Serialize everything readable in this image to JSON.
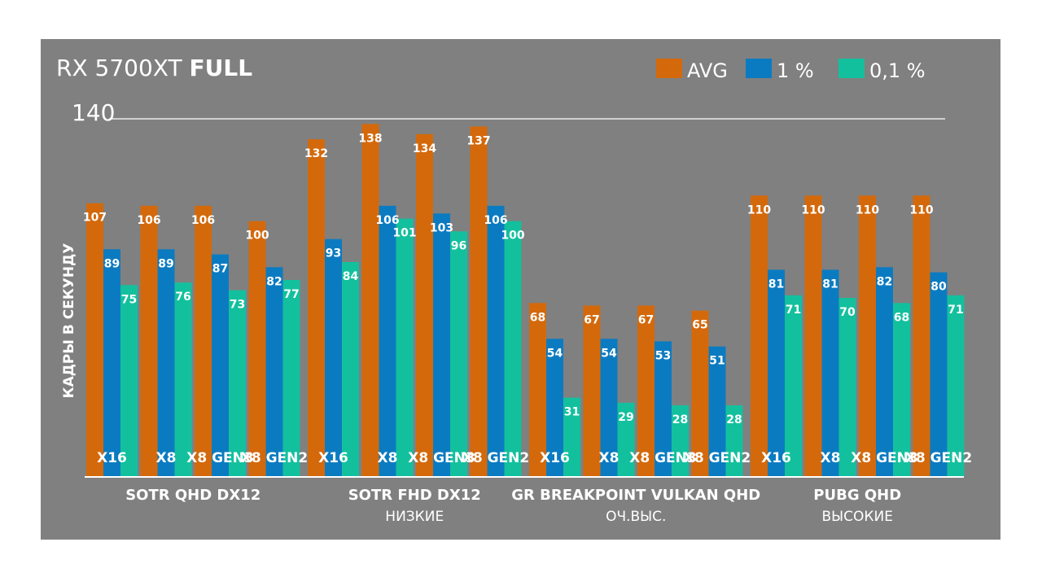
{
  "chart_data": {
    "type": "bar",
    "title_regular": "RX 5700XT",
    "title_bold": "FULL",
    "ylabel": "КАДРЫ В СЕКУНДУ",
    "ytick_labels": [
      "140"
    ],
    "ylim": [
      0,
      140
    ],
    "grid": false,
    "legend_placement": "top-right",
    "series": [
      {
        "name": "AVG",
        "color": "#D4690B"
      },
      {
        "name": "1 %",
        "color": "#0B7BC1"
      },
      {
        "name": "0,1 %",
        "color": "#13C09E"
      }
    ],
    "groups": [
      {
        "name": "SOTR QHD DX12",
        "subtitle": "",
        "categories": [
          {
            "label": "X16",
            "values": [
              107,
              89,
              75
            ]
          },
          {
            "label": "X8",
            "values": [
              106,
              89,
              76
            ]
          },
          {
            "label": "X8 GEN3",
            "values": [
              106,
              87,
              73
            ]
          },
          {
            "label": "X8 GEN2",
            "values": [
              100,
              82,
              77
            ]
          }
        ]
      },
      {
        "name": "SOTR FHD DX12",
        "subtitle": "НИЗКИЕ",
        "categories": [
          {
            "label": "X16",
            "values": [
              132,
              93,
              84
            ]
          },
          {
            "label": "X8",
            "values": [
              138,
              106,
              101
            ]
          },
          {
            "label": "X8 GEN3",
            "values": [
              134,
              103,
              96
            ]
          },
          {
            "label": "X8 GEN2",
            "values": [
              137,
              106,
              100
            ]
          }
        ]
      },
      {
        "name": "GR BREAKPOINT VULKAN QHD",
        "subtitle": "ОЧ.ВЫС.",
        "categories": [
          {
            "label": "X16",
            "values": [
              68,
              54,
              31
            ]
          },
          {
            "label": "X8",
            "values": [
              67,
              54,
              29
            ]
          },
          {
            "label": "X8 GEN3",
            "values": [
              67,
              53,
              28
            ]
          },
          {
            "label": "X8 GEN2",
            "values": [
              65,
              51,
              28
            ]
          }
        ]
      },
      {
        "name": "PUBG QHD",
        "subtitle": "ВЫСОКИЕ",
        "categories": [
          {
            "label": "X16",
            "values": [
              110,
              81,
              71
            ]
          },
          {
            "label": "X8",
            "values": [
              110,
              81,
              70
            ]
          },
          {
            "label": "X8 GEN3",
            "values": [
              110,
              82,
              68
            ]
          },
          {
            "label": "X8 GEN2",
            "values": [
              110,
              80,
              71
            ]
          }
        ]
      }
    ]
  }
}
